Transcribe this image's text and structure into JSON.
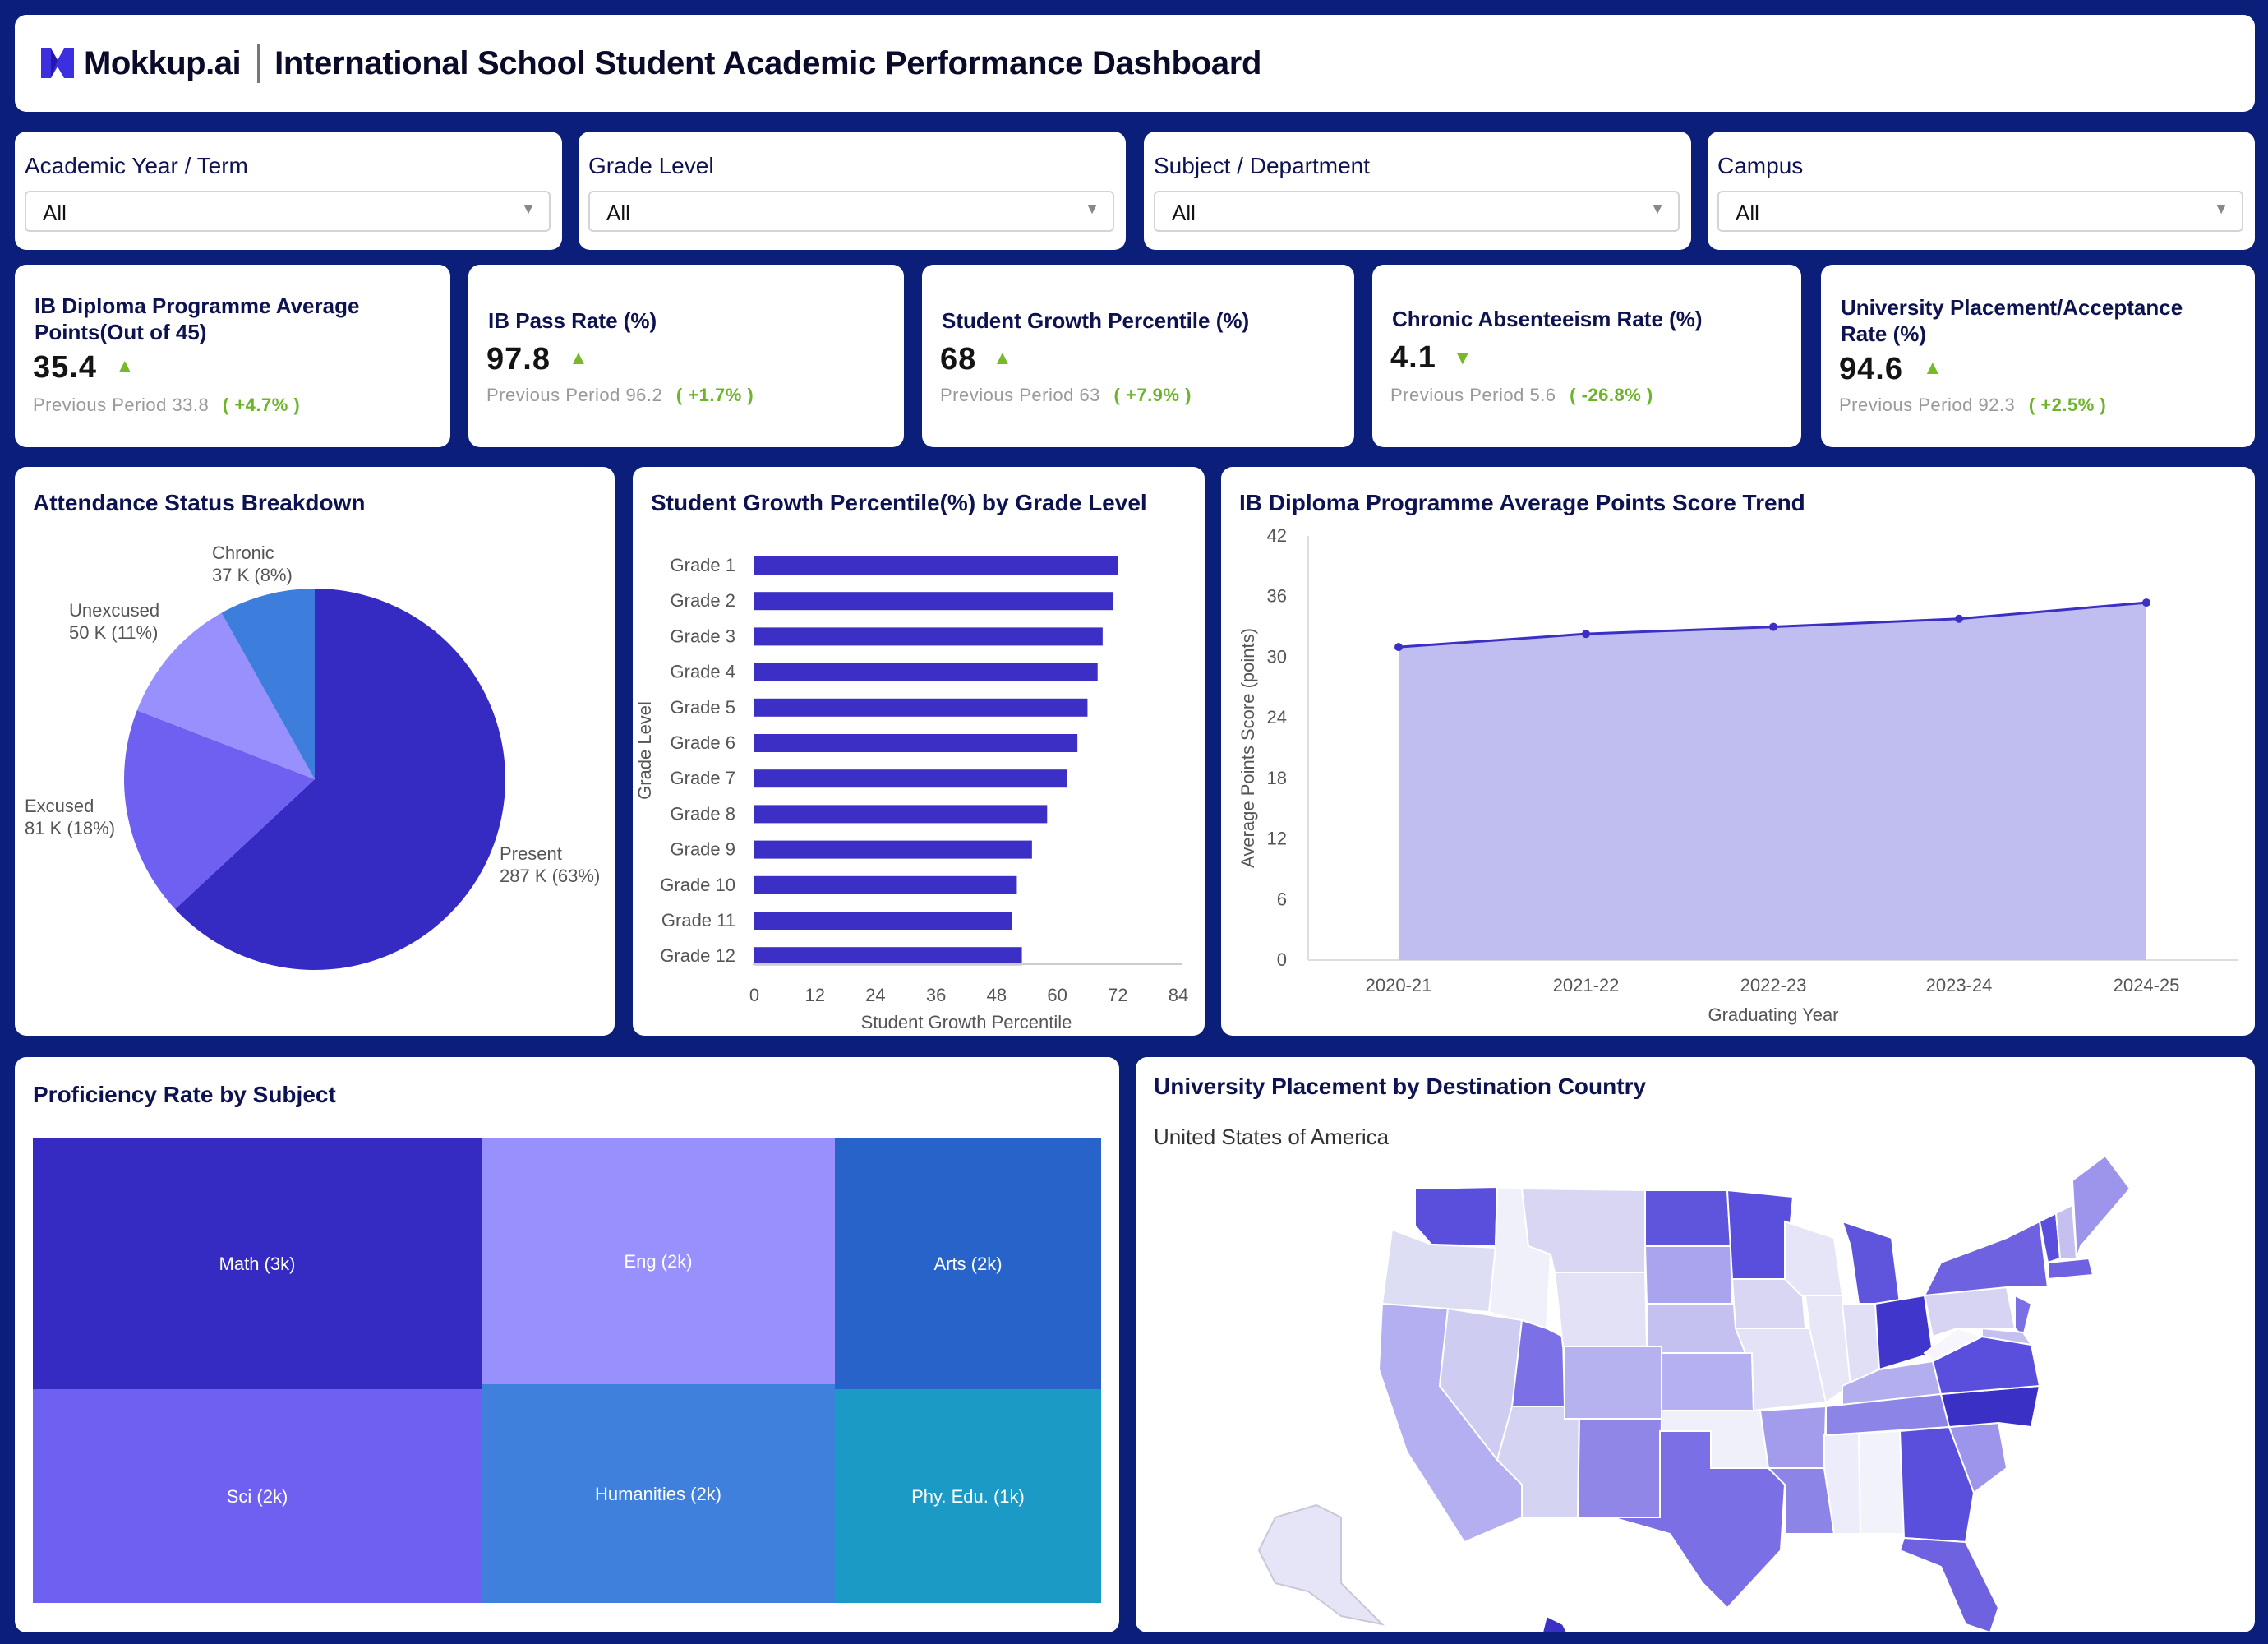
{
  "header": {
    "brand": "Mokkup.ai",
    "title": "International School Student Academic Performance Dashboard"
  },
  "filters": [
    {
      "label": "Academic Year / Term",
      "value": "All"
    },
    {
      "label": "Grade Level",
      "value": "All"
    },
    {
      "label": "Subject / Department",
      "value": "All"
    },
    {
      "label": "Campus",
      "value": "All"
    }
  ],
  "kpis": [
    {
      "title": "IB Diploma Programme Average Points(Out of 45)",
      "value": "35.4",
      "trend": "up",
      "prev_label": "Previous Period",
      "prev_value": "33.8",
      "delta": "( +4.7% )"
    },
    {
      "title": "IB Pass Rate (%)",
      "value": "97.8",
      "trend": "up",
      "prev_label": "Previous Period",
      "prev_value": "96.2",
      "delta": "( +1.7% )"
    },
    {
      "title": "Student Growth Percentile (%)",
      "value": "68",
      "trend": "up",
      "prev_label": "Previous Period",
      "prev_value": "63",
      "delta": "( +7.9% )"
    },
    {
      "title": "Chronic Absenteeism Rate (%)",
      "value": "4.1",
      "trend": "down",
      "prev_label": "Previous Period",
      "prev_value": "5.6",
      "delta": "( -26.8% )"
    },
    {
      "title": "University Placement/Acceptance Rate (%)",
      "value": "94.6",
      "trend": "up",
      "prev_label": "Previous Period",
      "prev_value": "92.3",
      "delta": "( +2.5% )"
    }
  ],
  "panels": {
    "attendance_title": "Attendance Status Breakdown",
    "growth_title": "Student Growth Percentile(%) by Grade Level",
    "trend_title": "IB Diploma Programme Average Points Score Trend",
    "proficiency_title": "Proficiency Rate by Subject",
    "placement_title": "University Placement by Destination Country",
    "placement_country": "United States of America"
  },
  "colors": {
    "navy": "#0b1f7a",
    "primary": "#3b2fc6",
    "present": "#352ac2",
    "excused": "#6e60f0",
    "unexcused": "#9890fd",
    "chronic": "#3d7ddb",
    "area_fill": "#c0bdf0",
    "positive": "#78b829"
  },
  "chart_data": [
    {
      "type": "pie",
      "title": "Attendance Status Breakdown",
      "slices": [
        {
          "label": "Present",
          "value_label": "287 K (63%)",
          "value": 287,
          "color": "#352ac2"
        },
        {
          "label": "Excused",
          "value_label": "81 K (18%)",
          "value": 81,
          "color": "#6e60f0"
        },
        {
          "label": "Unexcused",
          "value_label": "50 K (11%)",
          "value": 50,
          "color": "#9890fd"
        },
        {
          "label": "Chronic",
          "value_label": "37 K (8%)",
          "value": 37,
          "color": "#3d7ddb"
        }
      ]
    },
    {
      "type": "bar",
      "orientation": "horizontal",
      "title": "Student Growth Percentile(%) by Grade Level",
      "categories": [
        "Grade 1",
        "Grade 2",
        "Grade 3",
        "Grade 4",
        "Grade 5",
        "Grade 6",
        "Grade 7",
        "Grade 8",
        "Grade 9",
        "Grade 10",
        "Grade 11",
        "Grade 12"
      ],
      "values": [
        72,
        71,
        69,
        68,
        66,
        64,
        62,
        58,
        55,
        52,
        51,
        53
      ],
      "xlabel": "Student Growth Percentile",
      "ylabel": "Grade Level",
      "xlim": [
        0,
        84
      ],
      "xticks": [
        0,
        12,
        24,
        36,
        48,
        60,
        72,
        84
      ],
      "color": "#3b2fc6"
    },
    {
      "type": "area",
      "title": "IB Diploma Programme Average Points Score Trend",
      "x": [
        "2020-21",
        "2021-22",
        "2022-23",
        "2023-24",
        "2024-25"
      ],
      "values": [
        31,
        32.3,
        33,
        33.8,
        35.4
      ],
      "xlabel": "Graduating Year",
      "ylabel": "Average Points Score (points)",
      "ylim": [
        0,
        42
      ],
      "yticks": [
        0,
        6,
        12,
        18,
        24,
        30,
        36,
        42
      ],
      "line_color": "#3b2fc6",
      "fill_color": "#c0bdf0"
    },
    {
      "type": "treemap",
      "title": "Proficiency Rate by Subject",
      "items": [
        {
          "label": "Math (3k)",
          "color": "#352ac2"
        },
        {
          "label": "Eng (2k)",
          "color": "#9890fd"
        },
        {
          "label": "Arts (2k)",
          "color": "#2763c8"
        },
        {
          "label": "Sci (2k)",
          "color": "#6e60f0"
        },
        {
          "label": "Humanities (2k)",
          "color": "#3e80db"
        },
        {
          "label": "Phy. Edu. (1k)",
          "color": "#1a9ac4"
        }
      ]
    }
  ]
}
